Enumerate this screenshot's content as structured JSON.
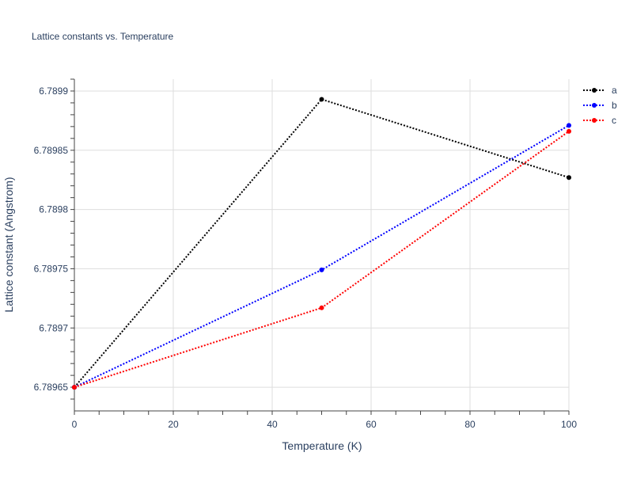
{
  "chart_data": {
    "type": "line",
    "title": "Lattice constants vs. Temperature",
    "xlabel": "Temperature (K)",
    "ylabel": "Lattice constant (Angstrom)",
    "xlim": [
      0,
      100
    ],
    "ylim": [
      6.78963,
      6.78991
    ],
    "x_ticks": [
      {
        "value": 0,
        "label": "0"
      },
      {
        "value": 20,
        "label": "20"
      },
      {
        "value": 40,
        "label": "40"
      },
      {
        "value": 60,
        "label": "60"
      },
      {
        "value": 80,
        "label": "80"
      },
      {
        "value": 100,
        "label": "100"
      }
    ],
    "y_ticks": [
      {
        "value": 6.78965,
        "label": "6.78965"
      },
      {
        "value": 6.7897,
        "label": "6.7897"
      },
      {
        "value": 6.78975,
        "label": "6.78975"
      },
      {
        "value": 6.7898,
        "label": "6.7898"
      },
      {
        "value": 6.78985,
        "label": "6.78985"
      },
      {
        "value": 6.7899,
        "label": "6.7899"
      }
    ],
    "grid": true,
    "legend_position": "top-right",
    "line_style": "dotted",
    "x": [
      0,
      50,
      100
    ],
    "series": [
      {
        "name": "a",
        "color": "#000000",
        "values": [
          6.78965,
          6.789893,
          6.789827
        ]
      },
      {
        "name": "b",
        "color": "#0000ff",
        "values": [
          6.78965,
          6.789749,
          6.789871
        ]
      },
      {
        "name": "c",
        "color": "#ff0000",
        "values": [
          6.78965,
          6.789717,
          6.789866
        ]
      }
    ]
  }
}
